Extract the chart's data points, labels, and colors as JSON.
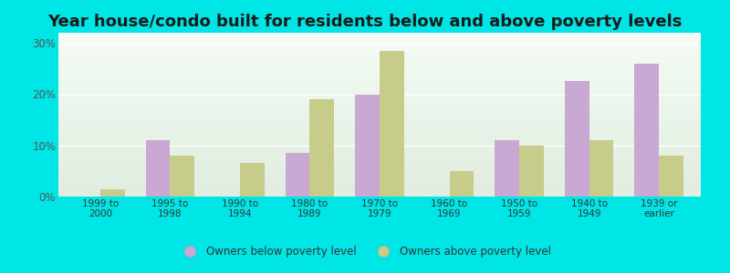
{
  "title": "Year house/condo built for residents below and above poverty levels",
  "categories": [
    "1999 to\n2000",
    "1995 to\n1998",
    "1990 to\n1994",
    "1980 to\n1989",
    "1970 to\n1979",
    "1960 to\n1969",
    "1950 to\n1959",
    "1940 to\n1949",
    "1939 or\nearlier"
  ],
  "below_poverty": [
    0,
    11,
    0,
    8.5,
    20,
    0,
    11,
    22.5,
    26
  ],
  "above_poverty": [
    1.5,
    8,
    6.5,
    19,
    28.5,
    5,
    10,
    11,
    8
  ],
  "below_color": "#c9a8d4",
  "above_color": "#c8cc8a",
  "background_outer": "#00e5e5",
  "background_plot_top": "#e0ede0",
  "background_plot_bottom": "#f5faf0",
  "ylim": [
    0,
    32
  ],
  "yticks": [
    0,
    10,
    20,
    30
  ],
  "ytick_labels": [
    "0%",
    "10%",
    "20%",
    "30%"
  ],
  "title_fontsize": 13,
  "legend_below_label": "Owners below poverty level",
  "legend_above_label": "Owners above poverty level",
  "bar_width": 0.35
}
